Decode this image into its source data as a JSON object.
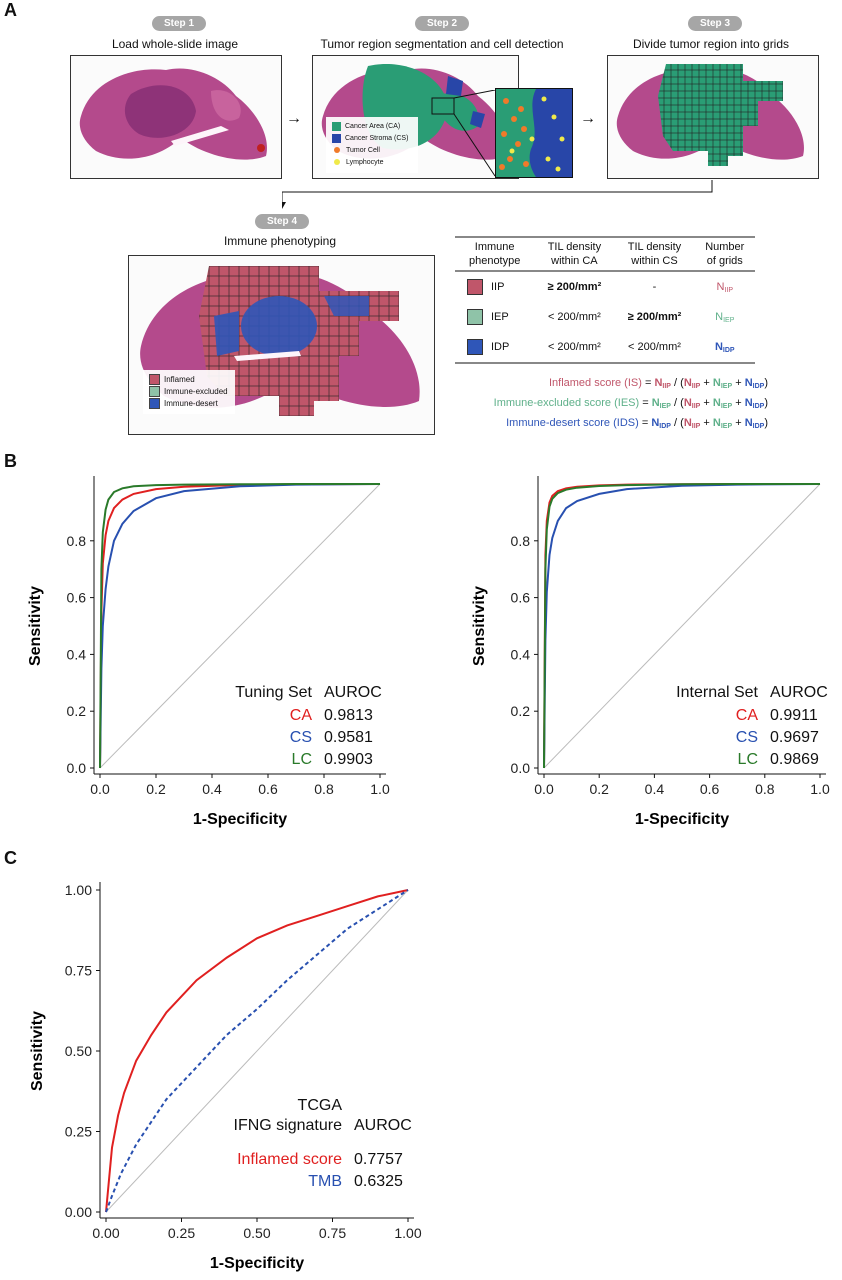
{
  "panel_labels": {
    "a": "A",
    "b": "B",
    "c": "C"
  },
  "steps": [
    {
      "pill": "Step 1",
      "title": "Load whole-slide image"
    },
    {
      "pill": "Step 2",
      "title": "Tumor region segmentation and cell detection"
    },
    {
      "pill": "Step 3",
      "title": "Divide tumor region into grids"
    },
    {
      "pill": "Step 4",
      "title": "Immune phenotyping"
    }
  ],
  "step2_legend": [
    {
      "label": "Cancer Area (CA)",
      "color": "#2a9d75",
      "shape": "square"
    },
    {
      "label": "Cancer Stroma (CS)",
      "color": "#2846a8",
      "shape": "square"
    },
    {
      "label": "Tumor Cell",
      "color": "#f07a2a",
      "shape": "dot"
    },
    {
      "label": "Lymphocyte",
      "color": "#f0ea4a",
      "shape": "dot"
    }
  ],
  "step4_legend": [
    {
      "label": "Inflamed",
      "color": "#c0566a"
    },
    {
      "label": "Immune-excluded",
      "color": "#8fc3a8"
    },
    {
      "label": "Immune-desert",
      "color": "#2f56b8"
    }
  ],
  "phenotype_table": {
    "headers": [
      [
        "Immune",
        "phenotype"
      ],
      [
        "TIL density",
        "within CA"
      ],
      [
        "TIL density",
        "within CS"
      ],
      [
        "Number",
        "of grids"
      ]
    ],
    "rows": [
      {
        "color": "#c0566a",
        "name": "IIP",
        "ca": "≥ 200/mm²",
        "ca_bold": true,
        "cs": "-",
        "cs_bold": false,
        "n": "N",
        "n_sub": "IIP",
        "n_color": "#c0566a"
      },
      {
        "color": "#8fc3a8",
        "name": "IEP",
        "ca": "< 200/mm²",
        "ca_bold": false,
        "cs": "≥ 200/mm²",
        "cs_bold": true,
        "n": "N",
        "n_sub": "IEP",
        "n_color": "#5fb08a"
      },
      {
        "color": "#2f56b8",
        "name": "IDP",
        "ca": "< 200/mm²",
        "ca_bold": false,
        "cs": "< 200/mm²",
        "cs_bold": false,
        "n": "N",
        "n_sub": "IDP",
        "n_color": "#2f56b8"
      }
    ]
  },
  "scores": [
    {
      "label": "Inflamed score (IS)",
      "color": "#c0566a",
      "num_sub": "IIP",
      "num_color": "#c0566a"
    },
    {
      "label": "Immune-excluded score (IES)",
      "color": "#5fb08a",
      "num_sub": "IEP",
      "num_color": "#5fb08a"
    },
    {
      "label": "Immune-desert score (IDS)",
      "color": "#2f56b8",
      "num_sub": "IDP",
      "num_color": "#2f56b8"
    }
  ],
  "score_formula": {
    "eq": "=",
    "n": "N",
    "div": "/ (",
    "plus": "+",
    "close": ")",
    "den": [
      {
        "sub": "IIP",
        "color": "#c0566a"
      },
      {
        "sub": "IEP",
        "color": "#5fb08a"
      },
      {
        "sub": "IDP",
        "color": "#2f56b8"
      }
    ]
  },
  "chart_data": [
    {
      "type": "line",
      "panel": "B-left",
      "xlabel": "1-Specificity",
      "ylabel": "Sensitivity",
      "xlim": [
        0,
        1.0
      ],
      "ylim": [
        0,
        1.0
      ],
      "xticks": [
        "0.0",
        "0.2",
        "0.4",
        "0.6",
        "0.8",
        "1.0"
      ],
      "yticks": [
        "0.0",
        "0.2",
        "0.4",
        "0.6",
        "0.8"
      ],
      "legend_header": [
        "Tuning Set",
        "AUROC"
      ],
      "series": [
        {
          "name": "CA",
          "auroc": "0.9813",
          "color": "#e02020",
          "x": [
            0,
            0.005,
            0.01,
            0.02,
            0.03,
            0.05,
            0.08,
            0.12,
            0.2,
            0.3,
            0.5,
            0.7,
            1.0
          ],
          "y": [
            0,
            0.55,
            0.72,
            0.82,
            0.87,
            0.915,
            0.945,
            0.965,
            0.982,
            0.99,
            0.997,
            0.999,
            1.0
          ]
        },
        {
          "name": "CS",
          "auroc": "0.9581",
          "color": "#2850b0",
          "x": [
            0,
            0.005,
            0.01,
            0.02,
            0.03,
            0.05,
            0.08,
            0.12,
            0.2,
            0.3,
            0.5,
            0.7,
            1.0
          ],
          "y": [
            0,
            0.35,
            0.5,
            0.63,
            0.71,
            0.8,
            0.86,
            0.905,
            0.95,
            0.975,
            0.992,
            0.998,
            1.0
          ]
        },
        {
          "name": "LC",
          "auroc": "0.9903",
          "color": "#2a7a2a",
          "x": [
            0,
            0.005,
            0.01,
            0.02,
            0.03,
            0.05,
            0.08,
            0.12,
            0.2,
            0.3,
            0.5,
            0.7,
            1.0
          ],
          "y": [
            0,
            0.7,
            0.83,
            0.91,
            0.945,
            0.972,
            0.985,
            0.992,
            0.996,
            0.998,
            0.999,
            1.0,
            1.0
          ]
        }
      ]
    },
    {
      "type": "line",
      "panel": "B-right",
      "xlabel": "1-Specificity",
      "ylabel": "Sensitivity",
      "xlim": [
        0,
        1.0
      ],
      "ylim": [
        0,
        1.0
      ],
      "xticks": [
        "0.0",
        "0.2",
        "0.4",
        "0.6",
        "0.8",
        "1.0"
      ],
      "yticks": [
        "0.0",
        "0.2",
        "0.4",
        "0.6",
        "0.8"
      ],
      "legend_header": [
        "Internal Set",
        "AUROC"
      ],
      "series": [
        {
          "name": "CA",
          "auroc": "0.9911",
          "color": "#e02020",
          "x": [
            0,
            0.005,
            0.01,
            0.02,
            0.03,
            0.05,
            0.08,
            0.12,
            0.2,
            0.3,
            0.5,
            0.7,
            1.0
          ],
          "y": [
            0,
            0.75,
            0.87,
            0.935,
            0.958,
            0.975,
            0.985,
            0.99,
            0.995,
            0.998,
            0.999,
            1.0,
            1.0
          ]
        },
        {
          "name": "CS",
          "auroc": "0.9697",
          "color": "#2850b0",
          "x": [
            0,
            0.005,
            0.01,
            0.02,
            0.03,
            0.05,
            0.08,
            0.12,
            0.2,
            0.3,
            0.5,
            0.7,
            1.0
          ],
          "y": [
            0,
            0.45,
            0.62,
            0.75,
            0.81,
            0.87,
            0.915,
            0.94,
            0.965,
            0.982,
            0.994,
            0.998,
            1.0
          ]
        },
        {
          "name": "LC",
          "auroc": "0.9869",
          "color": "#2a7a2a",
          "x": [
            0,
            0.005,
            0.01,
            0.02,
            0.03,
            0.05,
            0.08,
            0.12,
            0.2,
            0.3,
            0.5,
            0.7,
            1.0
          ],
          "y": [
            0,
            0.7,
            0.84,
            0.92,
            0.948,
            0.968,
            0.98,
            0.987,
            0.993,
            0.996,
            0.999,
            1.0,
            1.0
          ]
        }
      ]
    },
    {
      "type": "line",
      "panel": "C",
      "xlabel": "1-Specificity",
      "ylabel": "Sensitivity",
      "xlim": [
        0,
        1.0
      ],
      "ylim": [
        0,
        1.0
      ],
      "xticks": [
        "0.00",
        "0.25",
        "0.50",
        "0.75",
        "1.00"
      ],
      "yticks": [
        "0.00",
        "0.25",
        "0.50",
        "0.75",
        "1.00"
      ],
      "legend_header": [
        "TCGA",
        "IFNG signature",
        "AUROC"
      ],
      "series": [
        {
          "name": "Inflamed score",
          "auroc": "0.7757",
          "color": "#e02020",
          "dash": false,
          "x": [
            0,
            0.01,
            0.02,
            0.04,
            0.06,
            0.1,
            0.15,
            0.2,
            0.25,
            0.3,
            0.4,
            0.5,
            0.6,
            0.7,
            0.8,
            0.9,
            1.0
          ],
          "y": [
            0,
            0.1,
            0.2,
            0.3,
            0.37,
            0.47,
            0.55,
            0.62,
            0.67,
            0.72,
            0.79,
            0.85,
            0.89,
            0.92,
            0.95,
            0.98,
            1.0
          ]
        },
        {
          "name": "TMB",
          "auroc": "0.6325",
          "color": "#2850b0",
          "dash": true,
          "x": [
            0,
            0.02,
            0.05,
            0.1,
            0.15,
            0.2,
            0.25,
            0.3,
            0.4,
            0.5,
            0.6,
            0.7,
            0.8,
            0.9,
            1.0
          ],
          "y": [
            0,
            0.05,
            0.12,
            0.21,
            0.28,
            0.35,
            0.4,
            0.45,
            0.55,
            0.63,
            0.72,
            0.8,
            0.88,
            0.94,
            1.0
          ]
        }
      ]
    }
  ]
}
